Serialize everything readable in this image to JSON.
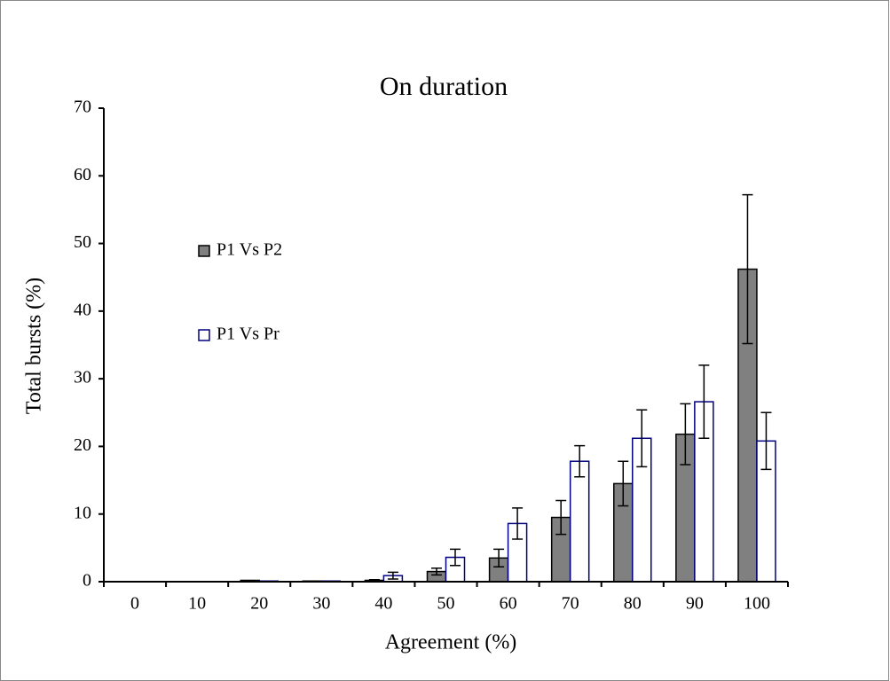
{
  "chart_data": {
    "type": "bar",
    "title": "On duration",
    "x_label": "Agreement (%)",
    "y_label": "Total bursts (%)",
    "categories": [
      "0",
      "10",
      "20",
      "30",
      "40",
      "50",
      "60",
      "70",
      "80",
      "90",
      "100"
    ],
    "series": [
      {
        "name": "P1 Vs P2",
        "color": "#808080",
        "stroke": "#000000",
        "values": [
          0,
          0,
          0.2,
          0.1,
          0.2,
          1.5,
          3.5,
          9.5,
          14.5,
          21.8,
          46.2
        ],
        "errors": [
          0,
          0,
          0,
          0,
          0.1,
          0.5,
          1.3,
          2.5,
          3.3,
          4.5,
          11
        ]
      },
      {
        "name": "P1 Vs Pr",
        "color": "#ffffff",
        "stroke": "#000080",
        "values": [
          0,
          0,
          0.1,
          0.1,
          0.9,
          3.6,
          8.6,
          17.8,
          21.2,
          26.6,
          20.8
        ],
        "errors": [
          0,
          0,
          0,
          0,
          0.5,
          1.2,
          2.3,
          2.3,
          4.2,
          5.4,
          4.2
        ]
      }
    ],
    "ylim": [
      0,
      70
    ],
    "yticks": [
      0,
      10,
      20,
      30,
      40,
      50,
      60,
      70
    ],
    "legend": "left"
  }
}
